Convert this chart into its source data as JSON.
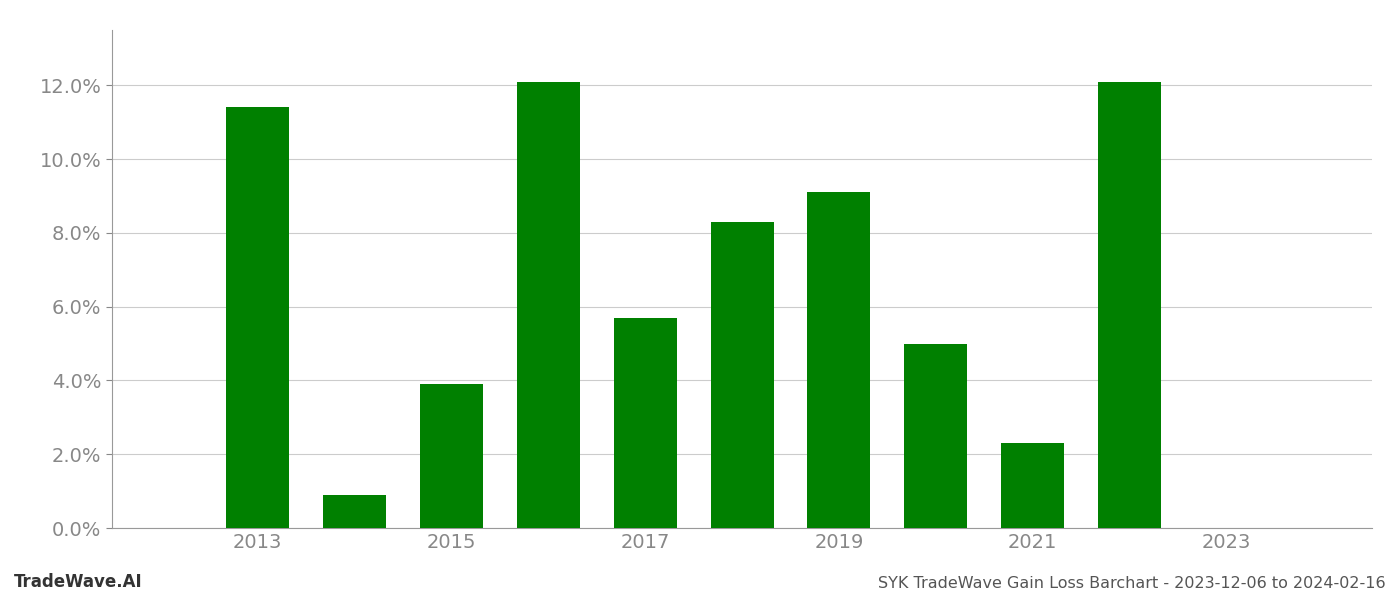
{
  "years": [
    2013,
    2014,
    2015,
    2016,
    2017,
    2018,
    2019,
    2020,
    2021,
    2022
  ],
  "values": [
    0.114,
    0.009,
    0.039,
    0.121,
    0.057,
    0.083,
    0.091,
    0.05,
    0.023,
    0.121
  ],
  "bar_color": "#008000",
  "background_color": "#ffffff",
  "grid_color": "#cccccc",
  "title": "SYK TradeWave Gain Loss Barchart - 2023-12-06 to 2024-02-16",
  "watermark": "TradeWave.AI",
  "ylim": [
    0,
    0.135
  ],
  "xlim": [
    2011.5,
    2024.5
  ],
  "xtick_values": [
    2013,
    2015,
    2017,
    2019,
    2021,
    2023
  ],
  "ytick_values": [
    0.0,
    0.02,
    0.04,
    0.06,
    0.08,
    0.1,
    0.12
  ],
  "title_fontsize": 11.5,
  "watermark_fontsize": 12,
  "tick_fontsize": 14,
  "bar_width": 0.65
}
